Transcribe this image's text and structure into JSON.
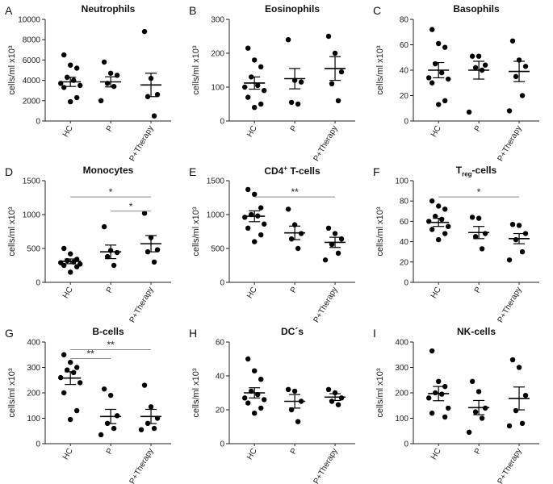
{
  "figure": {
    "background": "#ffffff",
    "point_color": "#000000",
    "line_color": "#000000",
    "sig_line_color": "#888888"
  },
  "chart_data": [
    {
      "letter": "A",
      "title": "Neutrophils",
      "title_sup": "",
      "title_sub": "",
      "title_suffix": "",
      "type": "scatter",
      "ylabel": "cells/ml x10³",
      "ylim": [
        0,
        10000
      ],
      "yticks": [
        0,
        2000,
        4000,
        6000,
        8000,
        10000
      ],
      "categories": [
        "HC",
        "P",
        "P+Therapy"
      ],
      "groups": [
        {
          "name": "HC",
          "points": [
            6500,
            5500,
            5200,
            4300,
            4000,
            3700,
            3500,
            3300,
            2300,
            1900
          ],
          "mean": 3850,
          "sem": 450
        },
        {
          "name": "P",
          "points": [
            5800,
            4700,
            4500,
            3700,
            3400,
            2000
          ],
          "mean": 3850,
          "sem": 500
        },
        {
          "name": "P+Therapy",
          "points": [
            8800,
            4200,
            2600,
            2400,
            500
          ],
          "mean": 3550,
          "sem": 1150
        }
      ],
      "significance": []
    },
    {
      "letter": "B",
      "title": "Eosinophils",
      "title_sup": "",
      "title_sub": "",
      "title_suffix": "",
      "type": "scatter",
      "ylabel": "cells/ml x10³",
      "ylim": [
        0,
        300
      ],
      "yticks": [
        0,
        100,
        200,
        300
      ],
      "categories": [
        "HC",
        "P",
        "P+Therapy"
      ],
      "groups": [
        {
          "name": "HC",
          "points": [
            215,
            180,
            160,
            130,
            105,
            100,
            90,
            70,
            50,
            40
          ],
          "mean": 112,
          "sem": 18
        },
        {
          "name": "P",
          "points": [
            240,
            120,
            115,
            55,
            50
          ],
          "mean": 125,
          "sem": 30
        },
        {
          "name": "P+Therapy",
          "points": [
            250,
            200,
            145,
            110,
            60
          ],
          "mean": 155,
          "sem": 35
        }
      ],
      "significance": []
    },
    {
      "letter": "C",
      "title": "Basophils",
      "title_sup": "",
      "title_sub": "",
      "title_suffix": "",
      "type": "scatter",
      "ylabel": "cells/ml x10³",
      "ylim": [
        0,
        80
      ],
      "yticks": [
        0,
        20,
        40,
        60,
        80
      ],
      "categories": [
        "HC",
        "P",
        "P+Therapy"
      ],
      "groups": [
        {
          "name": "HC",
          "points": [
            72,
            61,
            58,
            45,
            38,
            34,
            33,
            30,
            16,
            13
          ],
          "mean": 40,
          "sem": 6
        },
        {
          "name": "P",
          "points": [
            51,
            51,
            44,
            42,
            40,
            7
          ],
          "mean": 40,
          "sem": 7
        },
        {
          "name": "P+Therapy",
          "points": [
            63,
            48,
            43,
            35,
            20,
            8
          ],
          "mean": 39,
          "sem": 8
        }
      ],
      "significance": []
    },
    {
      "letter": "D",
      "title": "Monocytes",
      "title_sup": "",
      "title_sub": "",
      "title_suffix": "",
      "type": "scatter",
      "ylabel": "cells/ml x10³",
      "ylim": [
        0,
        1500
      ],
      "yticks": [
        0,
        500,
        1000,
        1500
      ],
      "categories": [
        "HC",
        "P",
        "P+Therapy"
      ],
      "groups": [
        {
          "name": "HC",
          "points": [
            500,
            420,
            340,
            320,
            300,
            290,
            270,
            250,
            230,
            150
          ],
          "mean": 310,
          "sem": 35
        },
        {
          "name": "P",
          "points": [
            820,
            470,
            440,
            380,
            250
          ],
          "mean": 450,
          "sem": 100
        },
        {
          "name": "P+Therapy",
          "points": [
            1020,
            660,
            480,
            450,
            300
          ],
          "mean": 570,
          "sem": 120
        }
      ],
      "significance": [
        {
          "from": 0,
          "to": 2,
          "value": 1260,
          "label": "*"
        },
        {
          "from": 1,
          "to": 2,
          "value": 1050,
          "label": "*"
        }
      ]
    },
    {
      "letter": "E",
      "title": "CD4",
      "title_sup": "+",
      "title_sub": "",
      "title_suffix": " T-cells",
      "type": "scatter",
      "ylabel": "cells/ml x10³",
      "ylim": [
        0,
        1500
      ],
      "yticks": [
        0,
        500,
        1000,
        1500
      ],
      "categories": [
        "HC",
        "P",
        "P+Therapy"
      ],
      "groups": [
        {
          "name": "HC",
          "points": [
            1370,
            1300,
            1100,
            1000,
            980,
            960,
            860,
            800,
            700,
            600
          ],
          "mean": 975,
          "sem": 80
        },
        {
          "name": "P",
          "points": [
            1080,
            850,
            720,
            640,
            500
          ],
          "mean": 730,
          "sem": 100
        },
        {
          "name": "P+Therapy",
          "points": [
            800,
            720,
            640,
            560,
            430,
            330
          ],
          "mean": 590,
          "sem": 75
        }
      ],
      "significance": [
        {
          "from": 0,
          "to": 2,
          "value": 1260,
          "label": "**"
        }
      ]
    },
    {
      "letter": "F",
      "title": "T",
      "title_sup": "",
      "title_sub": "reg",
      "title_suffix": "-cells",
      "type": "scatter",
      "ylabel": "cells/ml x10³",
      "ylim": [
        0,
        100
      ],
      "yticks": [
        0,
        20,
        40,
        60,
        80,
        100
      ],
      "categories": [
        "HC",
        "P",
        "P+Therapy"
      ],
      "groups": [
        {
          "name": "HC",
          "points": [
            80,
            75,
            72,
            65,
            62,
            60,
            55,
            52,
            48,
            42
          ],
          "mean": 59,
          "sem": 4
        },
        {
          "name": "P",
          "points": [
            64,
            63,
            48,
            45,
            33
          ],
          "mean": 49,
          "sem": 6
        },
        {
          "name": "P+Therapy",
          "points": [
            57,
            56,
            48,
            42,
            30,
            22
          ],
          "mean": 43,
          "sem": 5
        }
      ],
      "significance": [
        {
          "from": 0,
          "to": 2,
          "value": 84,
          "label": "*"
        }
      ]
    },
    {
      "letter": "G",
      "title": "B-cells",
      "title_sup": "",
      "title_sub": "",
      "title_suffix": "",
      "type": "scatter",
      "ylabel": "cells/ml x10³",
      "ylim": [
        0,
        400
      ],
      "yticks": [
        0,
        100,
        200,
        300,
        400
      ],
      "categories": [
        "HC",
        "P",
        "P+Therapy"
      ],
      "groups": [
        {
          "name": "HC",
          "points": [
            350,
            320,
            300,
            290,
            280,
            260,
            240,
            200,
            130,
            95
          ],
          "mean": 258,
          "sem": 25
        },
        {
          "name": "P",
          "points": [
            215,
            190,
            110,
            80,
            60,
            35
          ],
          "mean": 107,
          "sem": 28
        },
        {
          "name": "P+Therapy",
          "points": [
            230,
            145,
            100,
            80,
            60,
            55
          ],
          "mean": 107,
          "sem": 28
        }
      ],
      "significance": [
        {
          "from": 0,
          "to": 1,
          "value": 335,
          "label": "**"
        },
        {
          "from": 0,
          "to": 2,
          "value": 370,
          "label": "**"
        }
      ]
    },
    {
      "letter": "H",
      "title": "DC´s",
      "title_sup": "",
      "title_sub": "",
      "title_suffix": "",
      "type": "scatter",
      "ylabel": "cells/ml x10³",
      "ylim": [
        0,
        60
      ],
      "yticks": [
        0,
        20,
        40,
        60
      ],
      "categories": [
        "HC",
        "P",
        "P+Therapy"
      ],
      "groups": [
        {
          "name": "HC",
          "points": [
            50,
            43,
            38,
            31,
            29,
            27,
            26,
            24,
            21,
            18
          ],
          "mean": 30,
          "sem": 3
        },
        {
          "name": "P",
          "points": [
            32,
            31,
            25,
            20,
            13
          ],
          "mean": 25,
          "sem": 4
        },
        {
          "name": "P+Therapy",
          "points": [
            32,
            30,
            27,
            25,
            23
          ],
          "mean": 27.5,
          "sem": 2
        }
      ],
      "significance": []
    },
    {
      "letter": "I",
      "title": "NK-cells",
      "title_sup": "",
      "title_sub": "",
      "title_suffix": "",
      "type": "scatter",
      "ylabel": "cells/ml x10³",
      "ylim": [
        0,
        400
      ],
      "yticks": [
        0,
        100,
        200,
        300,
        400
      ],
      "categories": [
        "HC",
        "P",
        "P+Therapy"
      ],
      "groups": [
        {
          "name": "HC",
          "points": [
            365,
            245,
            225,
            200,
            195,
            180,
            140,
            120,
            105
          ],
          "mean": 197,
          "sem": 28
        },
        {
          "name": "P",
          "points": [
            245,
            205,
            140,
            125,
            100,
            45
          ],
          "mean": 142,
          "sem": 28
        },
        {
          "name": "P+Therapy",
          "points": [
            330,
            300,
            190,
            130,
            80,
            70
          ],
          "mean": 178,
          "sem": 45
        }
      ],
      "significance": []
    }
  ]
}
